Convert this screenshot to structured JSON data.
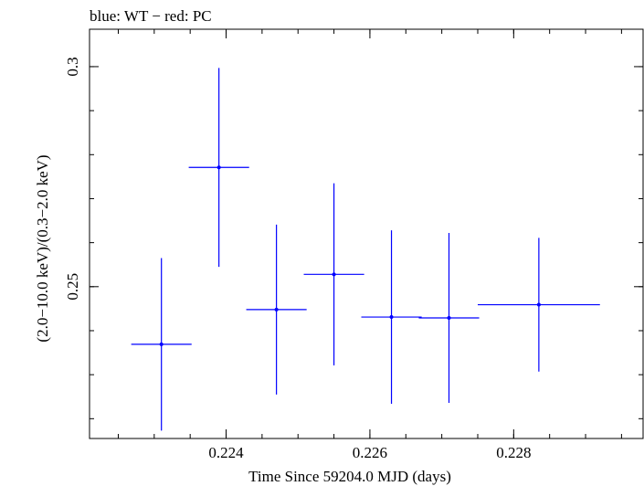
{
  "chart_data": {
    "type": "scatter",
    "title": "blue: WT − red: PC",
    "xlabel": "Time Since 59204.0 MJD (days)",
    "ylabel": "(2.0−10.0 keV)/(0.3−2.0 keV)",
    "xlim": [
      0.2221,
      0.2298
    ],
    "ylim": [
      0.2155,
      0.3085
    ],
    "x_ticks": [
      {
        "value": 0.224,
        "label": "0.224"
      },
      {
        "value": 0.226,
        "label": "0.226"
      },
      {
        "value": 0.228,
        "label": "0.228"
      }
    ],
    "y_ticks": [
      {
        "value": 0.25,
        "label": "0.25"
      },
      {
        "value": 0.3,
        "label": "0.3"
      }
    ],
    "x_minor_step": 0.0005,
    "y_minor_step": 0.01,
    "series": [
      {
        "color": "#0000ff",
        "points": [
          {
            "x": 0.2231,
            "xerr_low": 0.00042,
            "xerr_high": 0.00042,
            "y": 0.2369,
            "yerr_low": 0.0196,
            "yerr_high": 0.0196
          },
          {
            "x": 0.2239,
            "xerr_low": 0.00042,
            "xerr_high": 0.00042,
            "y": 0.2771,
            "yerr_low": 0.0226,
            "yerr_high": 0.0226
          },
          {
            "x": 0.2247,
            "xerr_low": 0.00042,
            "xerr_high": 0.00042,
            "y": 0.2448,
            "yerr_low": 0.0193,
            "yerr_high": 0.0193
          },
          {
            "x": 0.2255,
            "xerr_low": 0.00042,
            "xerr_high": 0.00042,
            "y": 0.2528,
            "yerr_low": 0.0207,
            "yerr_high": 0.0207
          },
          {
            "x": 0.2263,
            "xerr_low": 0.00042,
            "xerr_high": 0.00042,
            "y": 0.2431,
            "yerr_low": 0.0197,
            "yerr_high": 0.0197
          },
          {
            "x": 0.2271,
            "xerr_low": 0.00042,
            "xerr_high": 0.00042,
            "y": 0.2429,
            "yerr_low": 0.0193,
            "yerr_high": 0.0193
          },
          {
            "x": 0.22835,
            "xerr_low": 0.00085,
            "xerr_high": 0.00085,
            "y": 0.2459,
            "yerr_low": 0.0152,
            "yerr_high": 0.0152
          }
        ]
      }
    ],
    "grid": false
  }
}
